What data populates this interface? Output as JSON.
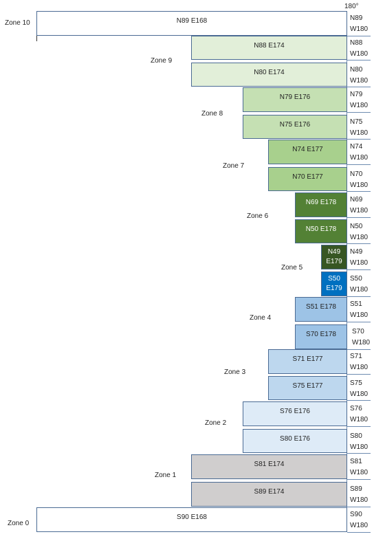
{
  "header": {
    "degree_label": "180°"
  },
  "colors": {
    "white": "#ffffff",
    "zone9": "#e2efd9",
    "zone8": "#c5e0b3",
    "zone7": "#a8d08d",
    "zone6": "#538135",
    "zone5_north": "#375623",
    "zone5_south": "#0070c0",
    "zone4": "#9dc3e6",
    "zone3": "#bdd7ee",
    "zone2": "#deebf7",
    "zone1": "#d0cece"
  },
  "zones": [
    {
      "label": "Zone 10"
    },
    {
      "label": "Zone 9"
    },
    {
      "label": "Zone 8"
    },
    {
      "label": "Zone 7"
    },
    {
      "label": "Zone 6"
    },
    {
      "label": "Zone 5"
    },
    {
      "label": "Zone 4"
    },
    {
      "label": "Zone 3"
    },
    {
      "label": "Zone 2"
    },
    {
      "label": "Zone 1"
    },
    {
      "label": "Zone 0"
    }
  ],
  "rows": [
    {
      "l1": "N89 E168",
      "l2": "",
      "r1": "N89",
      "r2": "W180",
      "color": "#ffffff",
      "text_color": "#222222"
    },
    {
      "l1": "N88 E174",
      "l2": "",
      "r1": "N88",
      "r2": "W180",
      "color": "#e2efd9",
      "text_color": "#222222"
    },
    {
      "l1": "N80 E174",
      "l2": "",
      "r1": "N80",
      "r2": "W180",
      "color": "#e2efd9",
      "text_color": "#222222"
    },
    {
      "l1": "N79 E176",
      "l2": "",
      "r1": "N79",
      "r2": "W180",
      "color": "#c5e0b3",
      "text_color": "#222222"
    },
    {
      "l1": "N75 E176",
      "l2": "",
      "r1": "N75",
      "r2": "W180",
      "color": "#c5e0b3",
      "text_color": "#222222"
    },
    {
      "l1": "N74 E177",
      "l2": "",
      "r1": "N74",
      "r2": "W180",
      "color": "#a8d08d",
      "text_color": "#222222"
    },
    {
      "l1": "N70 E177",
      "l2": "",
      "r1": "N70",
      "r2": "W180",
      "color": "#a8d08d",
      "text_color": "#222222"
    },
    {
      "l1": "N69 E178",
      "l2": "",
      "r1": "N69",
      "r2": "W180",
      "color": "#538135",
      "text_color": "#ffffff"
    },
    {
      "l1": "N50 E178",
      "l2": "",
      "r1": "N50",
      "r2": "W180",
      "color": "#538135",
      "text_color": "#ffffff"
    },
    {
      "l1": "N49",
      "l2": "E179",
      "r1": "N49",
      "r2": "W180",
      "color": "#375623",
      "text_color": "#ffffff"
    },
    {
      "l1": "S50",
      "l2": "E179",
      "r1": "S50",
      "r2": "W180",
      "color": "#0070c0",
      "text_color": "#ffffff"
    },
    {
      "l1": "S51 E178",
      "l2": "",
      "r1": "S51",
      "r2": "W180",
      "color": "#9dc3e6",
      "text_color": "#222222"
    },
    {
      "l1": "S70 E178",
      "l2": "",
      "r1": "S70",
      "r2": "W180",
      "color": "#9dc3e6",
      "text_color": "#222222"
    },
    {
      "l1": "S71 E177",
      "l2": "",
      "r1": "S71",
      "r2": "W180",
      "color": "#bdd7ee",
      "text_color": "#222222"
    },
    {
      "l1": "S75 E177",
      "l2": "",
      "r1": "S75",
      "r2": "W180",
      "color": "#bdd7ee",
      "text_color": "#222222"
    },
    {
      "l1": "S76 E176",
      "l2": "",
      "r1": "S76",
      "r2": "W180",
      "color": "#deebf7",
      "text_color": "#222222"
    },
    {
      "l1": "S80 E176",
      "l2": "",
      "r1": "S80",
      "r2": "W180",
      "color": "#deebf7",
      "text_color": "#222222"
    },
    {
      "l1": "S81 E174",
      "l2": "",
      "r1": "S81",
      "r2": "W180",
      "color": "#d0cece",
      "text_color": "#222222"
    },
    {
      "l1": "S89 E174",
      "l2": "",
      "r1": "S89",
      "r2": "W180",
      "color": "#d0cece",
      "text_color": "#222222"
    },
    {
      "l1": "S90 E168",
      "l2": "",
      "r1": "S90",
      "r2": "W180",
      "color": "#ffffff",
      "text_color": "#222222"
    }
  ]
}
